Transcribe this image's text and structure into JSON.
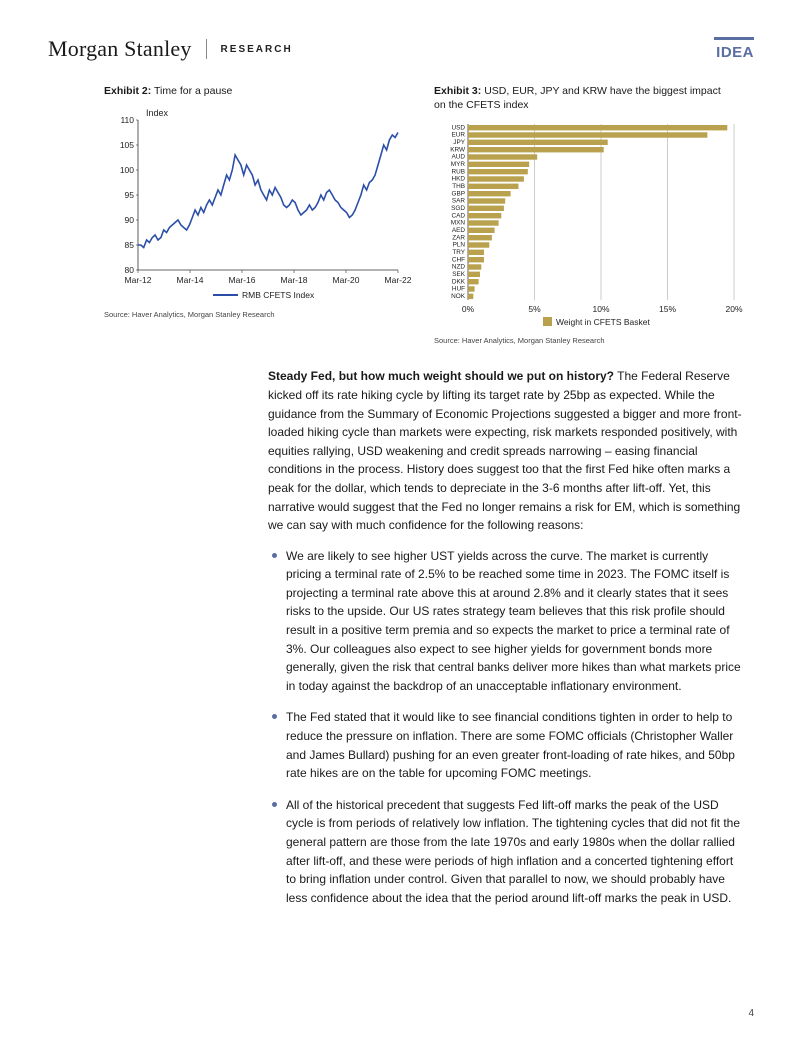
{
  "header": {
    "brand": "Morgan Stanley",
    "research_label": "RESEARCH",
    "idea_label": "IDEA",
    "idea_color": "#5b6ea3"
  },
  "exhibit2": {
    "label_prefix": "Exhibit 2:",
    "label_text": "Time for a pause",
    "y_axis_title": "Index",
    "y_min": 80,
    "y_max": 110,
    "y_step": 5,
    "x_labels": [
      "Mar-12",
      "Mar-14",
      "Mar-16",
      "Mar-18",
      "Mar-20",
      "Mar-22"
    ],
    "line_color": "#2b4fa8",
    "legend": "RMB CFETS Index",
    "source": "Source: Haver Analytics, Morgan Stanley Research",
    "series": [
      85,
      85,
      84.5,
      86,
      85.5,
      86.5,
      87,
      86,
      86.5,
      88,
      87.5,
      88.5,
      89,
      89.5,
      90,
      89,
      88.5,
      88,
      89,
      90.5,
      92,
      91,
      92.5,
      91.5,
      93,
      94,
      93,
      94.5,
      96,
      95,
      97,
      99,
      98,
      100,
      103,
      102,
      101,
      99,
      101,
      100,
      99,
      97,
      98,
      96,
      95,
      94,
      96,
      95,
      96.5,
      95.5,
      94.5,
      93,
      92.5,
      93,
      94,
      93.5,
      92,
      91,
      91.5,
      92,
      93,
      92,
      92.5,
      93.5,
      95,
      94,
      95.5,
      96,
      95,
      94,
      93.5,
      92.5,
      92,
      91.5,
      90.5,
      91,
      92,
      93.5,
      95,
      97,
      96,
      97.5,
      98,
      99,
      101,
      103,
      105,
      104,
      106,
      107,
      106.5,
      107.5
    ]
  },
  "exhibit3": {
    "label_prefix": "Exhibit 3:",
    "label_text": "USD, EUR, JPY and KRW have the biggest impact on the CFETS index",
    "bar_color": "#b9a14e",
    "x_min": 0,
    "x_max": 20,
    "x_step": 5,
    "legend": "Weight in CFETS Basket",
    "source": "Source: Haver Analytics, Morgan Stanley Research",
    "categories": [
      "USD",
      "EUR",
      "JPY",
      "KRW",
      "AUD",
      "MYR",
      "RUB",
      "HKD",
      "THB",
      "GBP",
      "SAR",
      "SGD",
      "CAD",
      "MXN",
      "AED",
      "ZAR",
      "PLN",
      "TRY",
      "CHF",
      "NZD",
      "SEK",
      "DKK",
      "HUF",
      "NOK"
    ],
    "values": [
      19.5,
      18.0,
      10.5,
      10.2,
      5.2,
      4.6,
      4.5,
      4.2,
      3.8,
      3.2,
      2.8,
      2.7,
      2.5,
      2.3,
      2.0,
      1.8,
      1.6,
      1.2,
      1.2,
      1.0,
      0.9,
      0.8,
      0.5,
      0.4
    ],
    "grid_color": "#999999"
  },
  "body": {
    "lead": "Steady Fed, but how much weight should we put on history?",
    "para1": " The Federal Reserve kicked off its rate hiking cycle by lifting its target rate by 25bp as expected. While the guidance from the Summary of Economic Projections suggested a bigger and more front-loaded hiking cycle than markets were expecting, risk markets responded positively, with equities rallying, USD weakening and credit spreads narrowing – easing financial conditions in the process. History does suggest too that the first Fed hike often marks a peak for the dollar, which tends to depreciate in the 3-6 months after lift-off. Yet, this narrative would suggest that the Fed no longer remains a risk for EM, which is something we can say with much confidence for the following reasons:",
    "bullets": [
      "We are likely to see higher UST yields across the curve. The market is currently pricing a terminal rate of 2.5% to be reached some time in 2023. The FOMC itself is projecting a terminal rate above this at around 2.8% and it clearly states that it sees risks to the upside. Our US rates strategy team believes that this risk profile should result in a positive term premia and so expects the market to price a terminal rate of 3%. Our colleagues also expect to see higher yields for government bonds more generally, given the risk that central banks deliver more hikes than what markets price in today against the backdrop of an unacceptable inflationary environment.",
      "The Fed stated that it would like to see financial conditions tighten in order to help to reduce the pressure on inflation. There are some FOMC officials (Christopher Waller and James Bullard) pushing for an even greater front-loading of rate hikes, and 50bp rate hikes are on the table for upcoming FOMC meetings.",
      "All of the historical precedent that suggests Fed lift-off marks the peak of the USD cycle is from periods of relatively low inflation. The tightening cycles that did not fit the general pattern are those from the late 1970s and early 1980s when the dollar rallied after lift-off, and these were periods of high inflation and a concerted tightening effort to bring inflation under control. Given that parallel to now, we should probably have less confidence about the idea that the period around lift-off marks the peak in USD."
    ]
  },
  "page_number": "4"
}
